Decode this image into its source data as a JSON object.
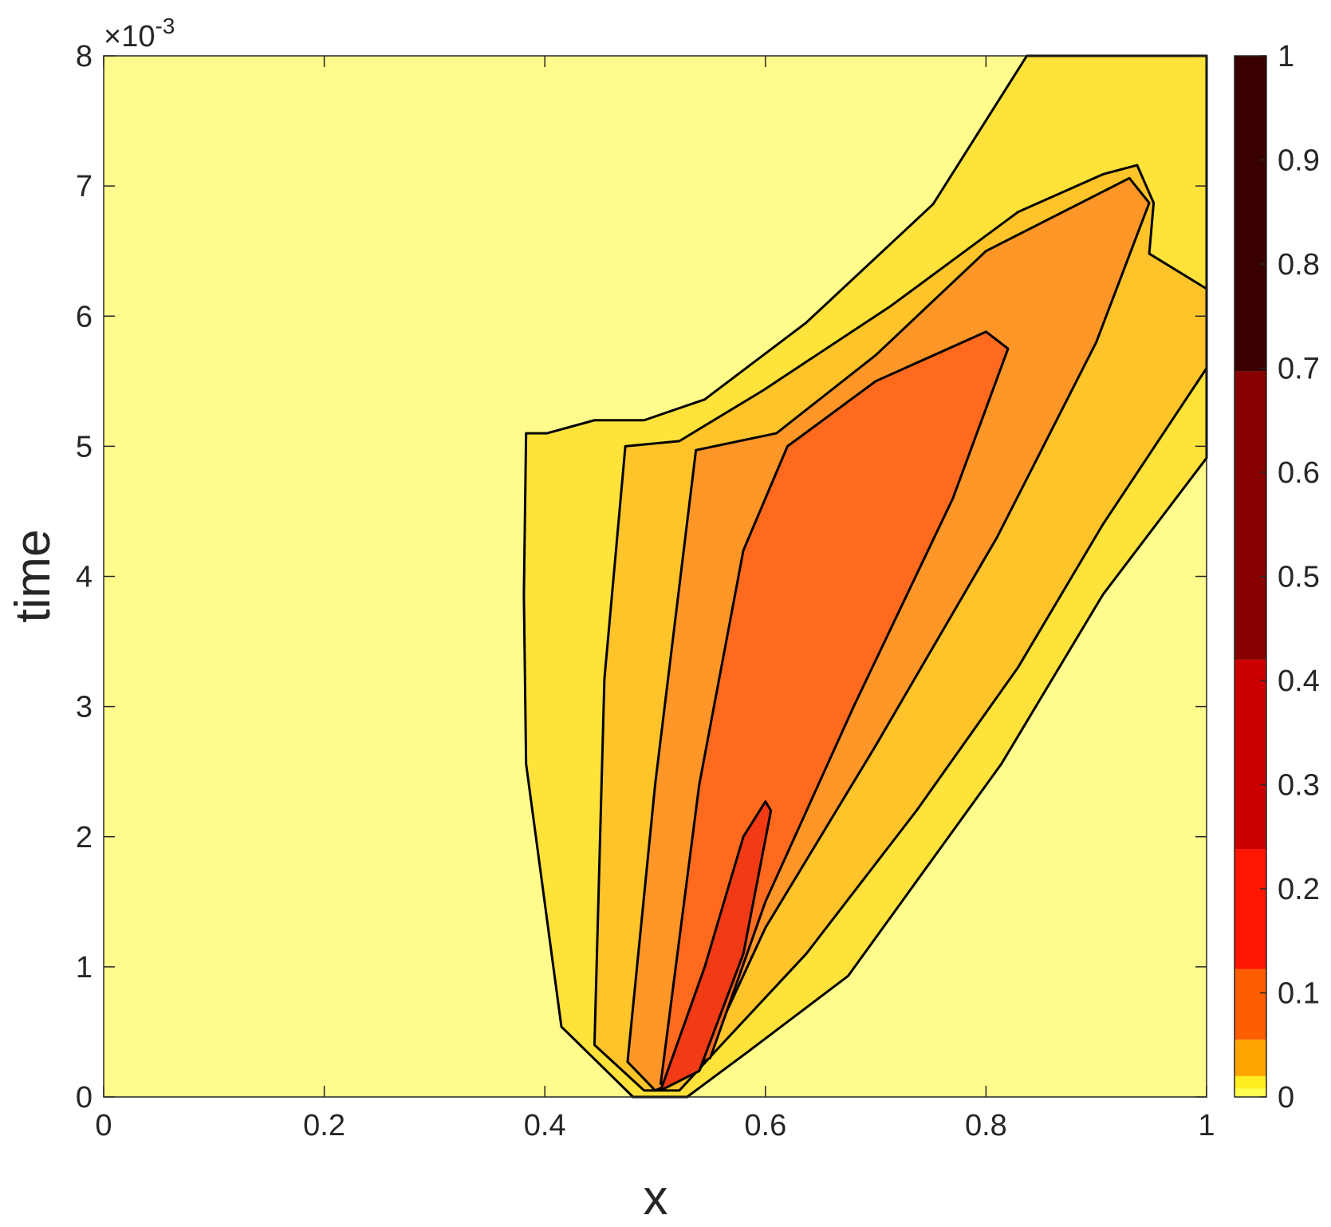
{
  "chart_data": {
    "type": "contour",
    "xlabel": "x",
    "ylabel": "time",
    "y_exponent_base": "×10",
    "y_exponent": "-3",
    "xlim": [
      0,
      1
    ],
    "ylim": [
      0,
      8
    ],
    "xticks": [
      0,
      0.2,
      0.4,
      0.6,
      0.8,
      1
    ],
    "yticks": [
      0,
      1,
      2,
      3,
      4,
      5,
      6,
      7,
      8
    ],
    "background": "#fffb8c",
    "line_color": "#000000",
    "contours": [
      {
        "level": 0.02,
        "color": "#ffe23a",
        "x": [
          0.48,
          0.415,
          0.383,
          0.381,
          0.383,
          0.402,
          0.445,
          0.49,
          0.545,
          0.637,
          0.752,
          0.837,
          1,
          1,
          0.906,
          0.814,
          0.675,
          0.583,
          0.529
        ],
        "y": [
          0,
          0.54,
          2.56,
          3.86,
          5.1,
          5.1,
          5.2,
          5.2,
          5.36,
          5.95,
          6.86,
          8,
          8,
          4.91,
          3.86,
          2.56,
          0.93,
          0.34,
          0
        ]
      },
      {
        "level": 0.055,
        "color": "#ffc42a",
        "x": [
          0.49,
          0.445,
          0.454,
          0.473,
          0.522,
          0.598,
          0.714,
          0.829,
          0.906,
          0.937,
          0.952,
          0.948,
          1,
          1,
          0.906,
          0.829,
          0.737,
          0.637,
          0.56,
          0.522
        ],
        "y": [
          0.05,
          0.4,
          3.21,
          5,
          5.04,
          5.43,
          6.08,
          6.8,
          7.09,
          7.16,
          6.87,
          6.48,
          6.21,
          5.6,
          4.4,
          3.3,
          2.2,
          1.1,
          0.4,
          0.05
        ]
      },
      {
        "level": 0.123,
        "color": "#ff9628",
        "x": [
          0.5,
          0.475,
          0.5,
          0.537,
          0.61,
          0.7,
          0.8,
          0.93,
          0.948,
          0.9,
          0.81,
          0.7,
          0.6,
          0.54
        ],
        "y": [
          0.05,
          0.27,
          2.4,
          4.97,
          5.1,
          5.7,
          6.5,
          7.06,
          6.87,
          5.8,
          4.3,
          2.7,
          1.3,
          0.2
        ]
      },
      {
        "level": 0.238,
        "color": "#ff6a1e",
        "x": [
          0.505,
          0.54,
          0.58,
          0.62,
          0.7,
          0.8,
          0.82,
          0.77,
          0.68,
          0.6,
          0.55
        ],
        "y": [
          0.1,
          2.4,
          4.2,
          5.0,
          5.5,
          5.88,
          5.75,
          4.6,
          3.0,
          1.5,
          0.3
        ]
      },
      {
        "level": 0.42,
        "color": "#f23a14",
        "x": [
          0.505,
          0.545,
          0.58,
          0.6,
          0.605,
          0.58,
          0.54
        ],
        "y": [
          0.05,
          1.0,
          2.0,
          2.27,
          2.2,
          1.1,
          0.2
        ]
      }
    ],
    "colorbar": {
      "levels": [
        0,
        0.008,
        0.02,
        0.055,
        0.123,
        0.238,
        0.42,
        0.697,
        1
      ],
      "colors": [
        "#ffff50",
        "#ffee22",
        "#ffa500",
        "#ff5e00",
        "#ff1500",
        "#cc0000",
        "#870000",
        "#3a0000"
      ],
      "ticks": [
        0,
        0.1,
        0.2,
        0.3,
        0.4,
        0.5,
        0.6,
        0.7,
        0.8,
        0.9,
        1
      ]
    }
  }
}
